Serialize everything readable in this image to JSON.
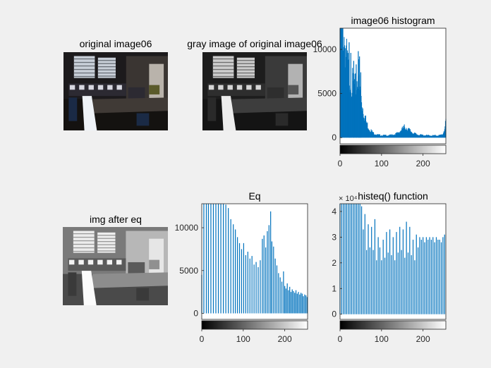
{
  "figure": {
    "background": "#f0f0f0",
    "bar_color": "#0072bd",
    "images": [
      {
        "title": "original image06",
        "style": "dark-color-office-photo"
      },
      {
        "title": "gray image of original image06",
        "style": "dark-gray-office-photo"
      },
      {
        "title": "img after eq",
        "style": "equalized-gray-office-photo"
      }
    ]
  },
  "chart_data": [
    {
      "type": "bar",
      "title": "image06 histogram",
      "xlabel": "",
      "ylabel": "",
      "xlim": [
        0,
        255
      ],
      "ylim": [
        -700,
        12400
      ],
      "x_ticks": [
        0,
        100,
        200
      ],
      "y_ticks": [
        0,
        5000,
        10000
      ],
      "exponent": "",
      "profile": [
        [
          0,
          12400
        ],
        [
          4,
          11000
        ],
        [
          8,
          10500
        ],
        [
          12,
          9000
        ],
        [
          16,
          7400
        ],
        [
          20,
          6600
        ],
        [
          24,
          5900
        ],
        [
          28,
          5300
        ],
        [
          32,
          5000
        ],
        [
          36,
          4700
        ],
        [
          40,
          5200
        ],
        [
          44,
          6500
        ],
        [
          48,
          4700
        ],
        [
          52,
          3600
        ],
        [
          56,
          2700
        ],
        [
          60,
          2000
        ],
        [
          64,
          1400
        ],
        [
          70,
          900
        ],
        [
          80,
          450
        ],
        [
          90,
          280
        ],
        [
          100,
          230
        ],
        [
          110,
          220
        ],
        [
          120,
          230
        ],
        [
          130,
          300
        ],
        [
          140,
          450
        ],
        [
          148,
          750
        ],
        [
          155,
          1000
        ],
        [
          160,
          950
        ],
        [
          168,
          700
        ],
        [
          176,
          450
        ],
        [
          186,
          300
        ],
        [
          200,
          240
        ],
        [
          220,
          200
        ],
        [
          240,
          220
        ],
        [
          248,
          350
        ],
        [
          252,
          900
        ],
        [
          255,
          1400
        ]
      ],
      "spikes": [
        [
          44,
          9800
        ],
        [
          47,
          9200
        ],
        [
          50,
          7400
        ],
        [
          39,
          8300
        ],
        [
          33,
          8700
        ],
        [
          26,
          9600
        ],
        [
          22,
          10800
        ]
      ]
    },
    {
      "type": "bar",
      "title": "Eq",
      "xlabel": "",
      "ylabel": "",
      "xlim": [
        0,
        255
      ],
      "ylim": [
        -700,
        12800
      ],
      "x_ticks": [
        0,
        100,
        200
      ],
      "y_ticks": [
        0,
        5000,
        10000
      ],
      "exponent": "",
      "bars": [
        [
          0,
          4500
        ],
        [
          5,
          12800
        ],
        [
          11,
          12800
        ],
        [
          16,
          12800
        ],
        [
          22,
          12800
        ],
        [
          28,
          12800
        ],
        [
          34,
          12800
        ],
        [
          40,
          12800
        ],
        [
          46,
          12800
        ],
        [
          52,
          12800
        ],
        [
          58,
          12700
        ],
        [
          64,
          12300
        ],
        [
          70,
          11000
        ],
        [
          76,
          10400
        ],
        [
          81,
          9800
        ],
        [
          86,
          8900
        ],
        [
          91,
          8200
        ],
        [
          96,
          7500
        ],
        [
          101,
          8200
        ],
        [
          106,
          6800
        ],
        [
          111,
          7200
        ],
        [
          116,
          6400
        ],
        [
          121,
          6700
        ],
        [
          126,
          5700
        ],
        [
          131,
          6000
        ],
        [
          136,
          5400
        ],
        [
          141,
          6200
        ],
        [
          146,
          8700
        ],
        [
          150,
          9100
        ],
        [
          154,
          7700
        ],
        [
          158,
          9600
        ],
        [
          162,
          10300
        ],
        [
          166,
          11900
        ],
        [
          169,
          8400
        ],
        [
          173,
          7800
        ],
        [
          177,
          6400
        ],
        [
          181,
          5600
        ],
        [
          185,
          4700
        ],
        [
          189,
          4200
        ],
        [
          193,
          3700
        ],
        [
          197,
          4900
        ],
        [
          200,
          3200
        ],
        [
          203,
          2900
        ],
        [
          206,
          3500
        ],
        [
          209,
          2700
        ],
        [
          212,
          3100
        ],
        [
          215,
          2500
        ],
        [
          218,
          2800
        ],
        [
          221,
          2600
        ],
        [
          224,
          2400
        ],
        [
          227,
          2700
        ],
        [
          230,
          2300
        ],
        [
          233,
          2500
        ],
        [
          236,
          2200
        ],
        [
          239,
          2400
        ],
        [
          242,
          2300
        ],
        [
          245,
          2000
        ],
        [
          248,
          2200
        ],
        [
          251,
          2100
        ],
        [
          254,
          1900
        ]
      ]
    },
    {
      "type": "bar",
      "title": "histeq() function",
      "xlabel": "",
      "ylabel": "",
      "xlim": [
        0,
        255
      ],
      "ylim": [
        -0.2,
        4.3
      ],
      "x_ticks": [
        0,
        100,
        200
      ],
      "y_ticks": [
        0,
        1,
        2,
        3,
        4
      ],
      "exponent": "× 10⁴",
      "bars": [
        [
          0,
          4.3
        ],
        [
          4,
          4.3
        ],
        [
          8,
          4.3
        ],
        [
          12,
          4.3
        ],
        [
          16,
          4.3
        ],
        [
          20,
          4.3
        ],
        [
          24,
          4.3
        ],
        [
          28,
          4.3
        ],
        [
          32,
          4.3
        ],
        [
          36,
          4.3
        ],
        [
          40,
          4.3
        ],
        [
          44,
          4.3
        ],
        [
          48,
          4.3
        ],
        [
          52,
          4.2
        ],
        [
          56,
          3.3
        ],
        [
          60,
          3.9
        ],
        [
          64,
          2.5
        ],
        [
          68,
          3.5
        ],
        [
          72,
          2.6
        ],
        [
          76,
          3.4
        ],
        [
          80,
          2.5
        ],
        [
          84,
          3.7
        ],
        [
          88,
          2.1
        ],
        [
          92,
          3.0
        ],
        [
          96,
          2.6
        ],
        [
          100,
          2.1
        ],
        [
          104,
          2.9
        ],
        [
          108,
          2.2
        ],
        [
          112,
          3.2
        ],
        [
          116,
          2.4
        ],
        [
          120,
          3.3
        ],
        [
          124,
          2.3
        ],
        [
          128,
          3.0
        ],
        [
          132,
          2.1
        ],
        [
          136,
          3.2
        ],
        [
          140,
          2.4
        ],
        [
          144,
          3.4
        ],
        [
          148,
          2.5
        ],
        [
          152,
          3.3
        ],
        [
          156,
          2.2
        ],
        [
          160,
          3.6
        ],
        [
          164,
          2.4
        ],
        [
          168,
          3.4
        ],
        [
          172,
          2.3
        ],
        [
          176,
          2.9
        ],
        [
          180,
          2.1
        ],
        [
          184,
          3.1
        ],
        [
          188,
          2.6
        ],
        [
          192,
          3.0
        ],
        [
          196,
          2.9
        ],
        [
          200,
          3.0
        ],
        [
          204,
          2.8
        ],
        [
          208,
          3.0
        ],
        [
          212,
          2.9
        ],
        [
          216,
          3.0
        ],
        [
          220,
          2.9
        ],
        [
          224,
          3.0
        ],
        [
          228,
          2.8
        ],
        [
          232,
          3.0
        ],
        [
          236,
          2.9
        ],
        [
          240,
          2.9
        ],
        [
          244,
          2.8
        ],
        [
          248,
          3.0
        ],
        [
          252,
          3.1
        ]
      ]
    }
  ]
}
